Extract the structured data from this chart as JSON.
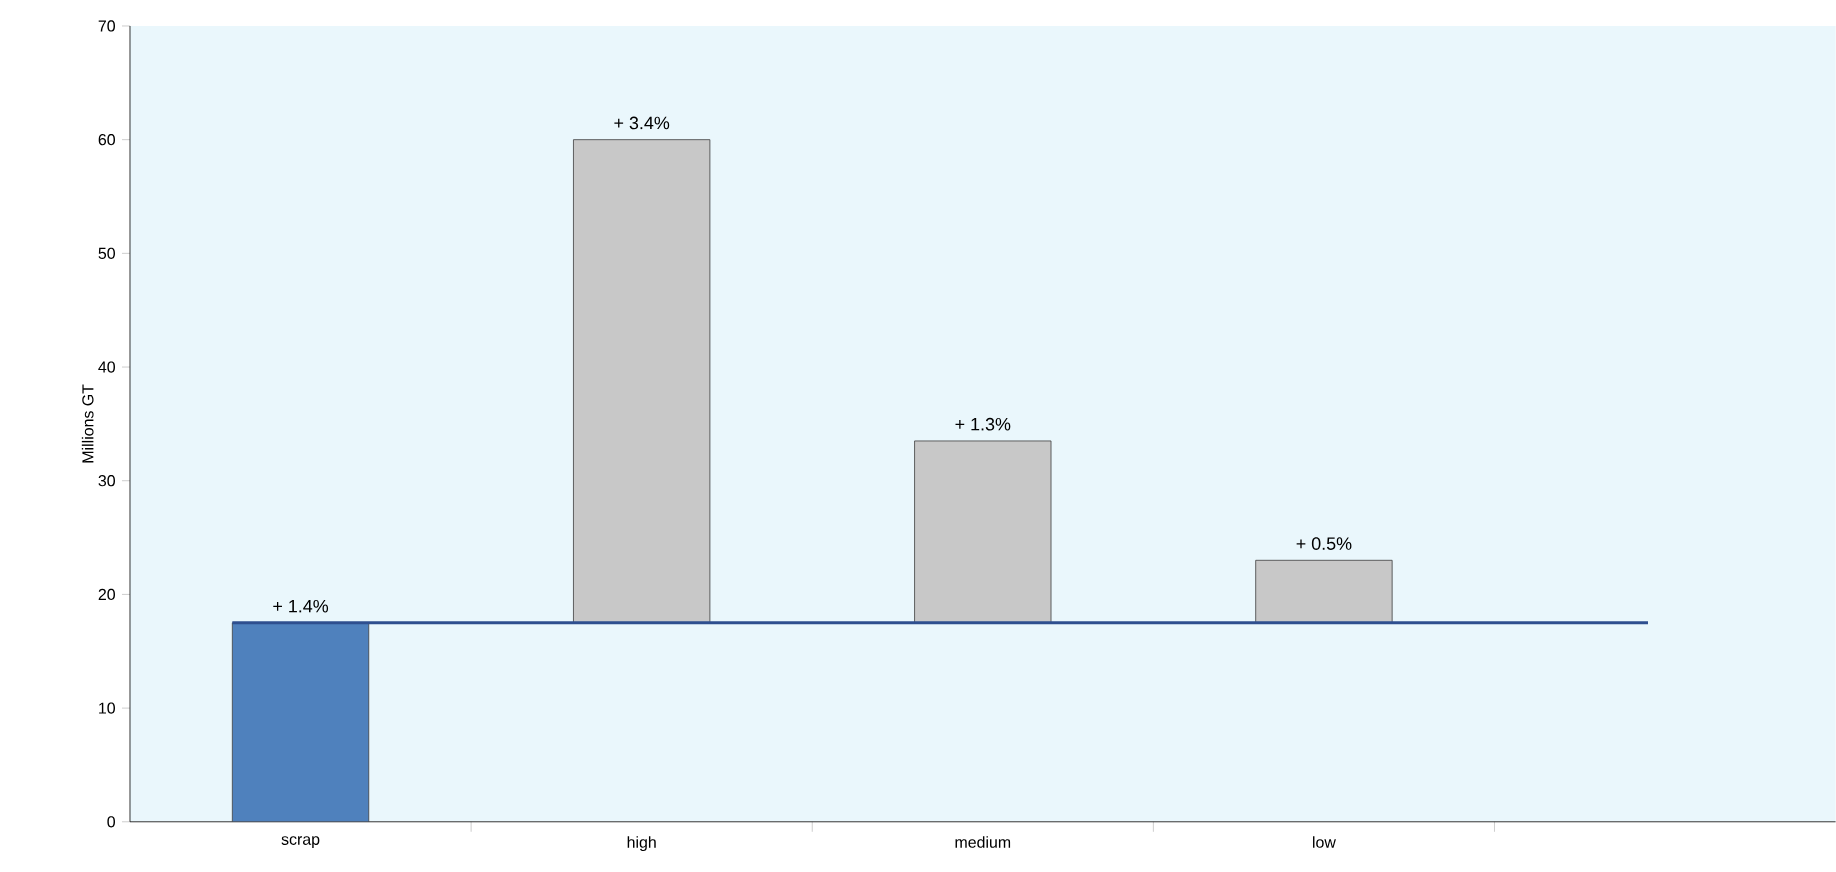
{
  "chart_data": {
    "type": "bar",
    "ylabel": "Millions GT",
    "categories": [
      "scrap",
      "high",
      "medium",
      "low",
      null
    ],
    "values": [
      17.5,
      42.5,
      16,
      5.5,
      null
    ],
    "base": [
      0,
      17.5,
      17.5,
      17.5,
      null
    ],
    "colors": [
      "#4f81bd",
      "#c8c8c8",
      "#c8c8c8",
      "#c8c8c8",
      "#c8c8c8"
    ],
    "annotations": [
      {
        "text": "+ 1.4%",
        "x": "scrap",
        "y": 17.5
      },
      {
        "text": "+ 3.4%",
        "x": "high",
        "y": 60
      },
      {
        "text": "+ 1.3%",
        "x": "medium",
        "y": 33.5
      },
      {
        "text": "+ 0.5%",
        "x": "low",
        "y": 23
      }
    ],
    "ylim": [
      0,
      70
    ],
    "yticks": [
      0,
      10,
      20,
      30,
      40,
      50,
      60,
      70
    ],
    "ref_lines": [
      {
        "axis": "y",
        "value": 17.5,
        "color": "#2e4f8f"
      }
    ]
  }
}
